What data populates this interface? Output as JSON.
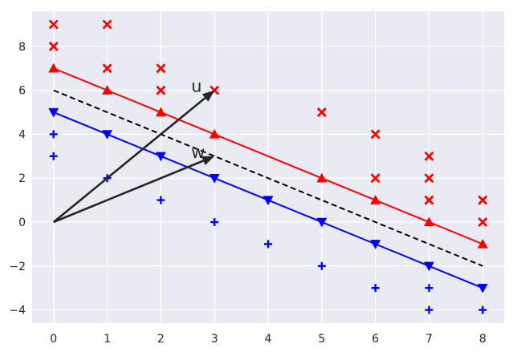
{
  "chart_data": {
    "type": "scatter",
    "title": "",
    "xlabel": "",
    "ylabel": "",
    "xlim": [
      -0.4,
      8.4
    ],
    "ylim": [
      -4.6,
      9.6
    ],
    "x_ticks": [
      0,
      1,
      2,
      3,
      4,
      5,
      6,
      7,
      8
    ],
    "y_ticks": [
      -4,
      -2,
      0,
      2,
      4,
      6,
      8
    ],
    "x_tick_labels": [
      "0",
      "1",
      "2",
      "3",
      "4",
      "5",
      "6",
      "7",
      "8"
    ],
    "y_tick_labels": [
      "−4",
      "−2",
      "0",
      "2",
      "4",
      "6",
      "8"
    ],
    "grid": true,
    "style": {
      "background": "#eaeaf2",
      "grid": "#ffffff",
      "text": "#262626"
    },
    "series": [
      {
        "marker": "x",
        "color": "#ff0000",
        "points": [
          [
            0,
            9
          ],
          [
            0,
            8
          ],
          [
            1,
            9
          ],
          [
            1,
            7
          ],
          [
            2,
            7
          ],
          [
            2,
            6
          ],
          [
            3,
            6
          ],
          [
            5,
            5
          ],
          [
            6,
            4
          ],
          [
            6,
            2
          ],
          [
            7,
            3
          ],
          [
            7,
            2
          ],
          [
            7,
            1
          ],
          [
            8,
            1
          ],
          [
            8,
            0
          ]
        ]
      },
      {
        "marker": "plus",
        "color": "#0000ff",
        "points": [
          [
            0,
            4
          ],
          [
            0,
            3
          ],
          [
            1,
            2
          ],
          [
            2,
            1
          ],
          [
            3,
            0
          ],
          [
            4,
            -1
          ],
          [
            5,
            -2
          ],
          [
            6,
            -3
          ],
          [
            7,
            -3
          ],
          [
            7,
            -4
          ],
          [
            8,
            -4
          ]
        ]
      },
      {
        "marker": "triangle-up",
        "color": "#ff0000",
        "line": "solid",
        "points": [
          [
            0,
            7
          ],
          [
            1,
            6
          ],
          [
            2,
            5
          ],
          [
            3,
            4
          ],
          [
            5,
            2
          ],
          [
            6,
            1
          ],
          [
            7,
            0
          ],
          [
            8,
            -1
          ]
        ]
      },
      {
        "marker": "triangle-down",
        "color": "#0000ff",
        "line": "solid",
        "points": [
          [
            0,
            5
          ],
          [
            1,
            4
          ],
          [
            2,
            3
          ],
          [
            3,
            2
          ],
          [
            4,
            1
          ],
          [
            5,
            0
          ],
          [
            6,
            -1
          ],
          [
            7,
            -2
          ],
          [
            8,
            -3
          ]
        ]
      }
    ],
    "boundary": {
      "color": "#000000",
      "line": "dashed",
      "points": [
        [
          0,
          6
        ],
        [
          8,
          -2
        ]
      ]
    },
    "vectors": [
      {
        "label": "u",
        "from": [
          0,
          0
        ],
        "to": [
          3,
          6
        ],
        "color": "#262626"
      },
      {
        "label": "w",
        "from": [
          0,
          0
        ],
        "to": [
          3,
          3
        ],
        "color": "#262626"
      }
    ]
  }
}
